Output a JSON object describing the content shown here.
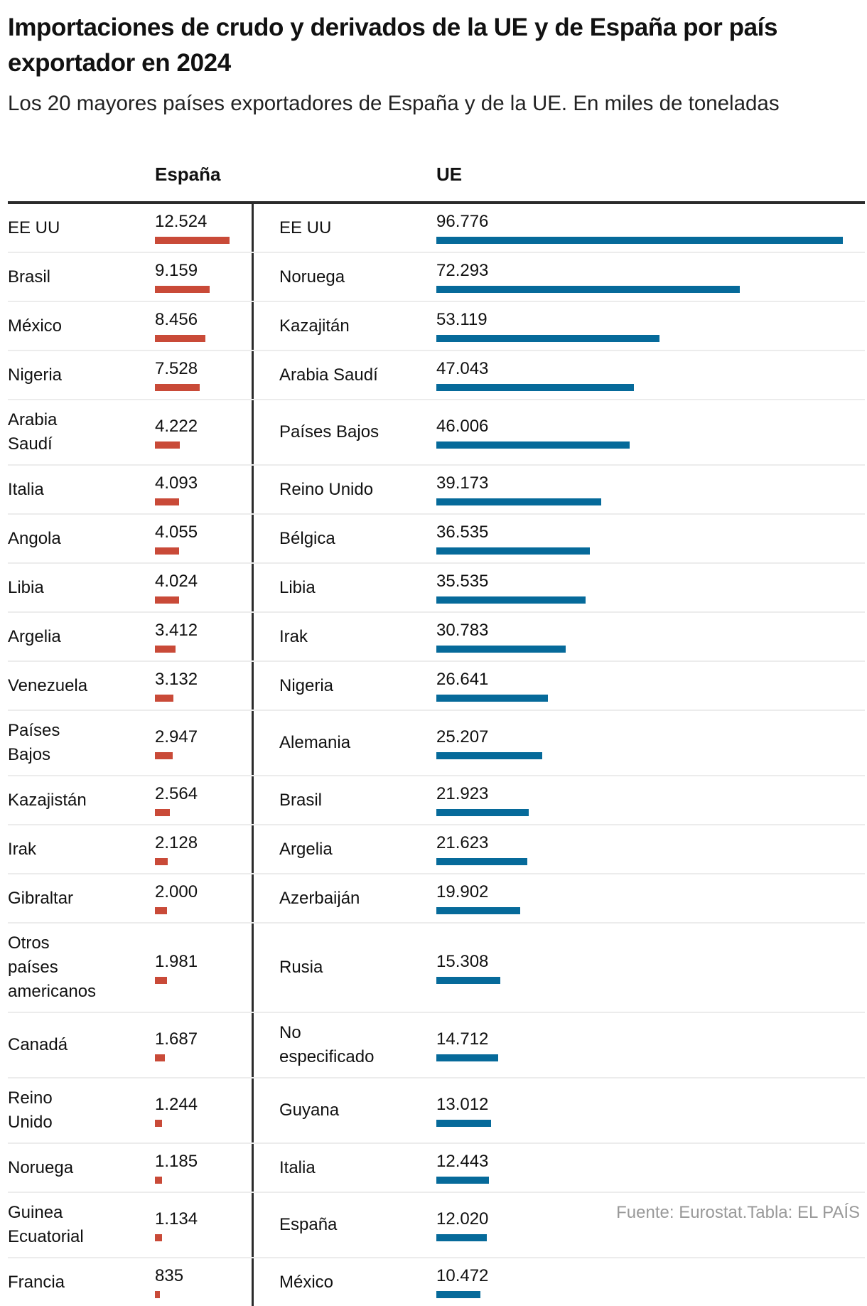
{
  "title": "Importaciones de crudo y derivados de la UE y de España por país exportador en 2024",
  "subtitle": "Los 20 mayores países exportadores de España y de la UE. En miles de toneladas",
  "footer": "Fuente: Eurostat.Tabla: EL PAÍS",
  "colors": {
    "espana": "#c94a38",
    "ue": "#066a9a"
  },
  "chart_data": {
    "type": "table",
    "columns": [
      "España",
      "UE"
    ],
    "espana": {
      "countries": [
        "EE UU",
        "Brasil",
        "México",
        "Nigeria",
        "Arabia Saudí",
        "Italia",
        "Angola",
        "Libia",
        "Argelia",
        "Venezuela",
        "Países Bajos",
        "Kazajistán",
        "Irak",
        "Gibraltar",
        "Otros países americanos",
        "Canadá",
        "Reino Unido",
        "Noruega",
        "Guinea Ecuatorial",
        "Francia"
      ],
      "values": [
        12524,
        9159,
        8456,
        7528,
        4222,
        4093,
        4055,
        4024,
        3412,
        3132,
        2947,
        2564,
        2128,
        2000,
        1981,
        1687,
        1244,
        1185,
        1134,
        835
      ],
      "labels": [
        "12.524",
        "9.159",
        "8.456",
        "7.528",
        "4.222",
        "4.093",
        "4.055",
        "4.024",
        "3.412",
        "3.132",
        "2.947",
        "2.564",
        "2.128",
        "2.000",
        "1.981",
        "1.687",
        "1.244",
        "1.185",
        "1.134",
        "835"
      ]
    },
    "ue": {
      "countries": [
        "EE UU",
        "Noruega",
        "Kazajitán",
        "Arabia Saudí",
        "Países Bajos",
        "Reino Unido",
        "Bélgica",
        "Libia",
        "Irak",
        "Nigeria",
        "Alemania",
        "Brasil",
        "Argelia",
        "Azerbaiján",
        "Rusia",
        "No especificado",
        "Guyana",
        "Italia",
        "España",
        "México"
      ],
      "values": [
        96776,
        72293,
        53119,
        47043,
        46006,
        39173,
        36535,
        35535,
        30783,
        26641,
        25207,
        21923,
        21623,
        19902,
        15308,
        14712,
        13012,
        12443,
        12020,
        10472
      ],
      "labels": [
        "96.776",
        "72.293",
        "53.119",
        "47.043",
        "46.006",
        "39.173",
        "36.535",
        "35.535",
        "30.783",
        "26.641",
        "25.207",
        "21.923",
        "21.623",
        "19.902",
        "15.308",
        "14.712",
        "13.012",
        "12.443",
        "12.020",
        "10.472"
      ]
    }
  }
}
